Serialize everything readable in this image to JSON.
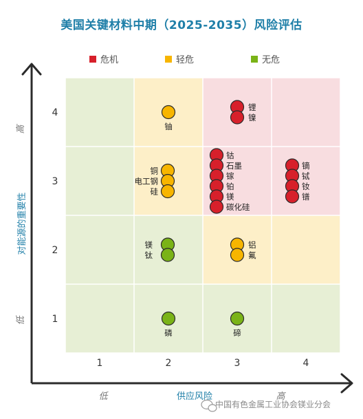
{
  "title": "美国关键材料中期（2025-2035）风险评估",
  "colors": {
    "critical": "#d7202b",
    "near_critical": "#f7b500",
    "not_critical": "#7ab317",
    "axis_label": "#1f7fa8",
    "zone_green": "#e7efd5",
    "zone_yellow": "#fdefc8",
    "zone_red": "#f8dde0"
  },
  "legend": [
    {
      "key": "critical",
      "label": "危机"
    },
    {
      "key": "near_critical",
      "label": "轻危"
    },
    {
      "key": "not_critical",
      "label": "无危"
    }
  ],
  "watermark": "中国有色金属工业协会镁业分会",
  "chart_data": {
    "type": "scatter",
    "title": "美国关键材料中期（2025-2035）风险评估",
    "xlabel": "供应风险",
    "ylabel": "对能源的重要性",
    "x_ticks": [
      "1",
      "2",
      "3",
      "4"
    ],
    "y_ticks": [
      "1",
      "2",
      "3",
      "4"
    ],
    "x_range": [
      0.5,
      4.5
    ],
    "y_range": [
      0.5,
      4.5
    ],
    "x_low_label": "低",
    "x_high_label": "高",
    "y_low_label": "低",
    "y_high_label": "高",
    "grid": true,
    "legend_position": "top",
    "zones": [
      {
        "x": 1,
        "y": 1,
        "level": "not_critical"
      },
      {
        "x": 2,
        "y": 1,
        "level": "not_critical"
      },
      {
        "x": 3,
        "y": 1,
        "level": "not_critical"
      },
      {
        "x": 4,
        "y": 1,
        "level": "not_critical"
      },
      {
        "x": 1,
        "y": 2,
        "level": "not_critical"
      },
      {
        "x": 2,
        "y": 2,
        "level": "not_critical"
      },
      {
        "x": 3,
        "y": 2,
        "level": "near_critical"
      },
      {
        "x": 4,
        "y": 2,
        "level": "near_critical"
      },
      {
        "x": 1,
        "y": 3,
        "level": "not_critical"
      },
      {
        "x": 2,
        "y": 3,
        "level": "near_critical"
      },
      {
        "x": 3,
        "y": 3,
        "level": "critical"
      },
      {
        "x": 4,
        "y": 3,
        "level": "critical"
      },
      {
        "x": 1,
        "y": 4,
        "level": "not_critical"
      },
      {
        "x": 2,
        "y": 4,
        "level": "near_critical"
      },
      {
        "x": 3,
        "y": 4,
        "level": "critical"
      },
      {
        "x": 4,
        "y": 4,
        "level": "critical"
      }
    ],
    "groups": [
      {
        "x": 3,
        "y": 4,
        "level": "critical",
        "labels": [
          "锂",
          "镍"
        ]
      },
      {
        "x": 2,
        "y": 4,
        "level": "near_critical",
        "labels": [
          "铀"
        ]
      },
      {
        "x": 3,
        "y": 3,
        "level": "critical",
        "labels": [
          "钴",
          "石墨",
          "镓",
          "铂",
          "镁",
          "碳化硅"
        ]
      },
      {
        "x": 4,
        "y": 3,
        "level": "critical",
        "labels": [
          "镝",
          "铽",
          "钕",
          "镨"
        ]
      },
      {
        "x": 2,
        "y": 3,
        "level": "near_critical",
        "labels": [
          "铜",
          "电工钢",
          "硅"
        ]
      },
      {
        "x": 2,
        "y": 2,
        "level": "not_critical",
        "labels": [
          "镁",
          "钛"
        ]
      },
      {
        "x": 3,
        "y": 2,
        "level": "near_critical",
        "labels": [
          "铝",
          "氟"
        ]
      },
      {
        "x": 2,
        "y": 1,
        "level": "not_critical",
        "labels": [
          "磷"
        ]
      },
      {
        "x": 3,
        "y": 1,
        "level": "not_critical",
        "labels": [
          "碲"
        ]
      }
    ]
  }
}
